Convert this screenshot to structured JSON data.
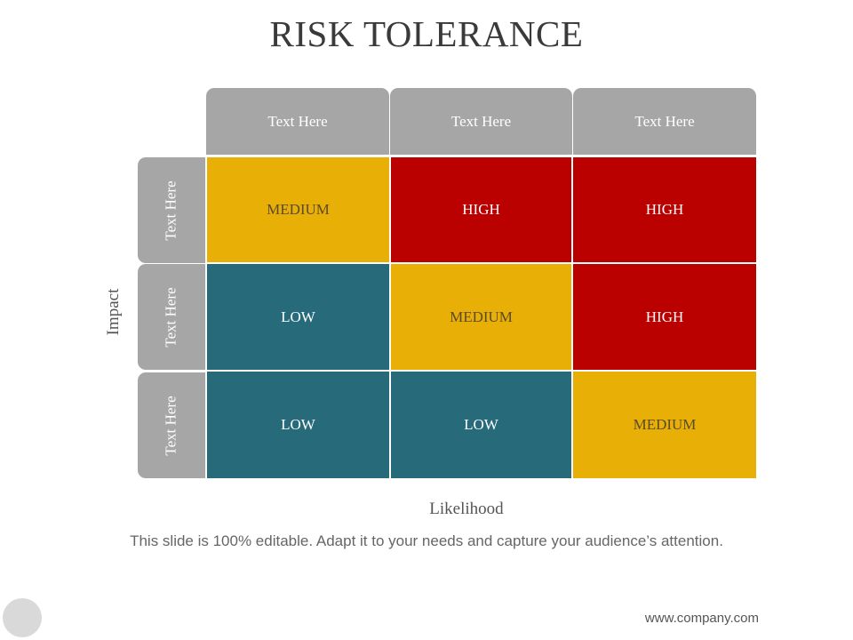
{
  "title": "RISK TOLERANCE",
  "columns": [
    "Text Here",
    "Text Here",
    "Text Here"
  ],
  "rows": [
    "Text Here",
    "Text Here",
    "Text Here"
  ],
  "matrix": [
    [
      "MEDIUM",
      "HIGH",
      "HIGH"
    ],
    [
      "LOW",
      "MEDIUM",
      "HIGH"
    ],
    [
      "LOW",
      "LOW",
      "MEDIUM"
    ]
  ],
  "colors": {
    "header": "#a6a6a6",
    "low": "#276b7b",
    "medium": "#e8b007",
    "high": "#bb0000"
  },
  "y_axis_label": "Impact",
  "x_axis_label": "Likelihood",
  "caption": "This slide is 100% editable. Adapt it to your needs and capture your audience’s attention.",
  "footer_url": "www.company.com"
}
